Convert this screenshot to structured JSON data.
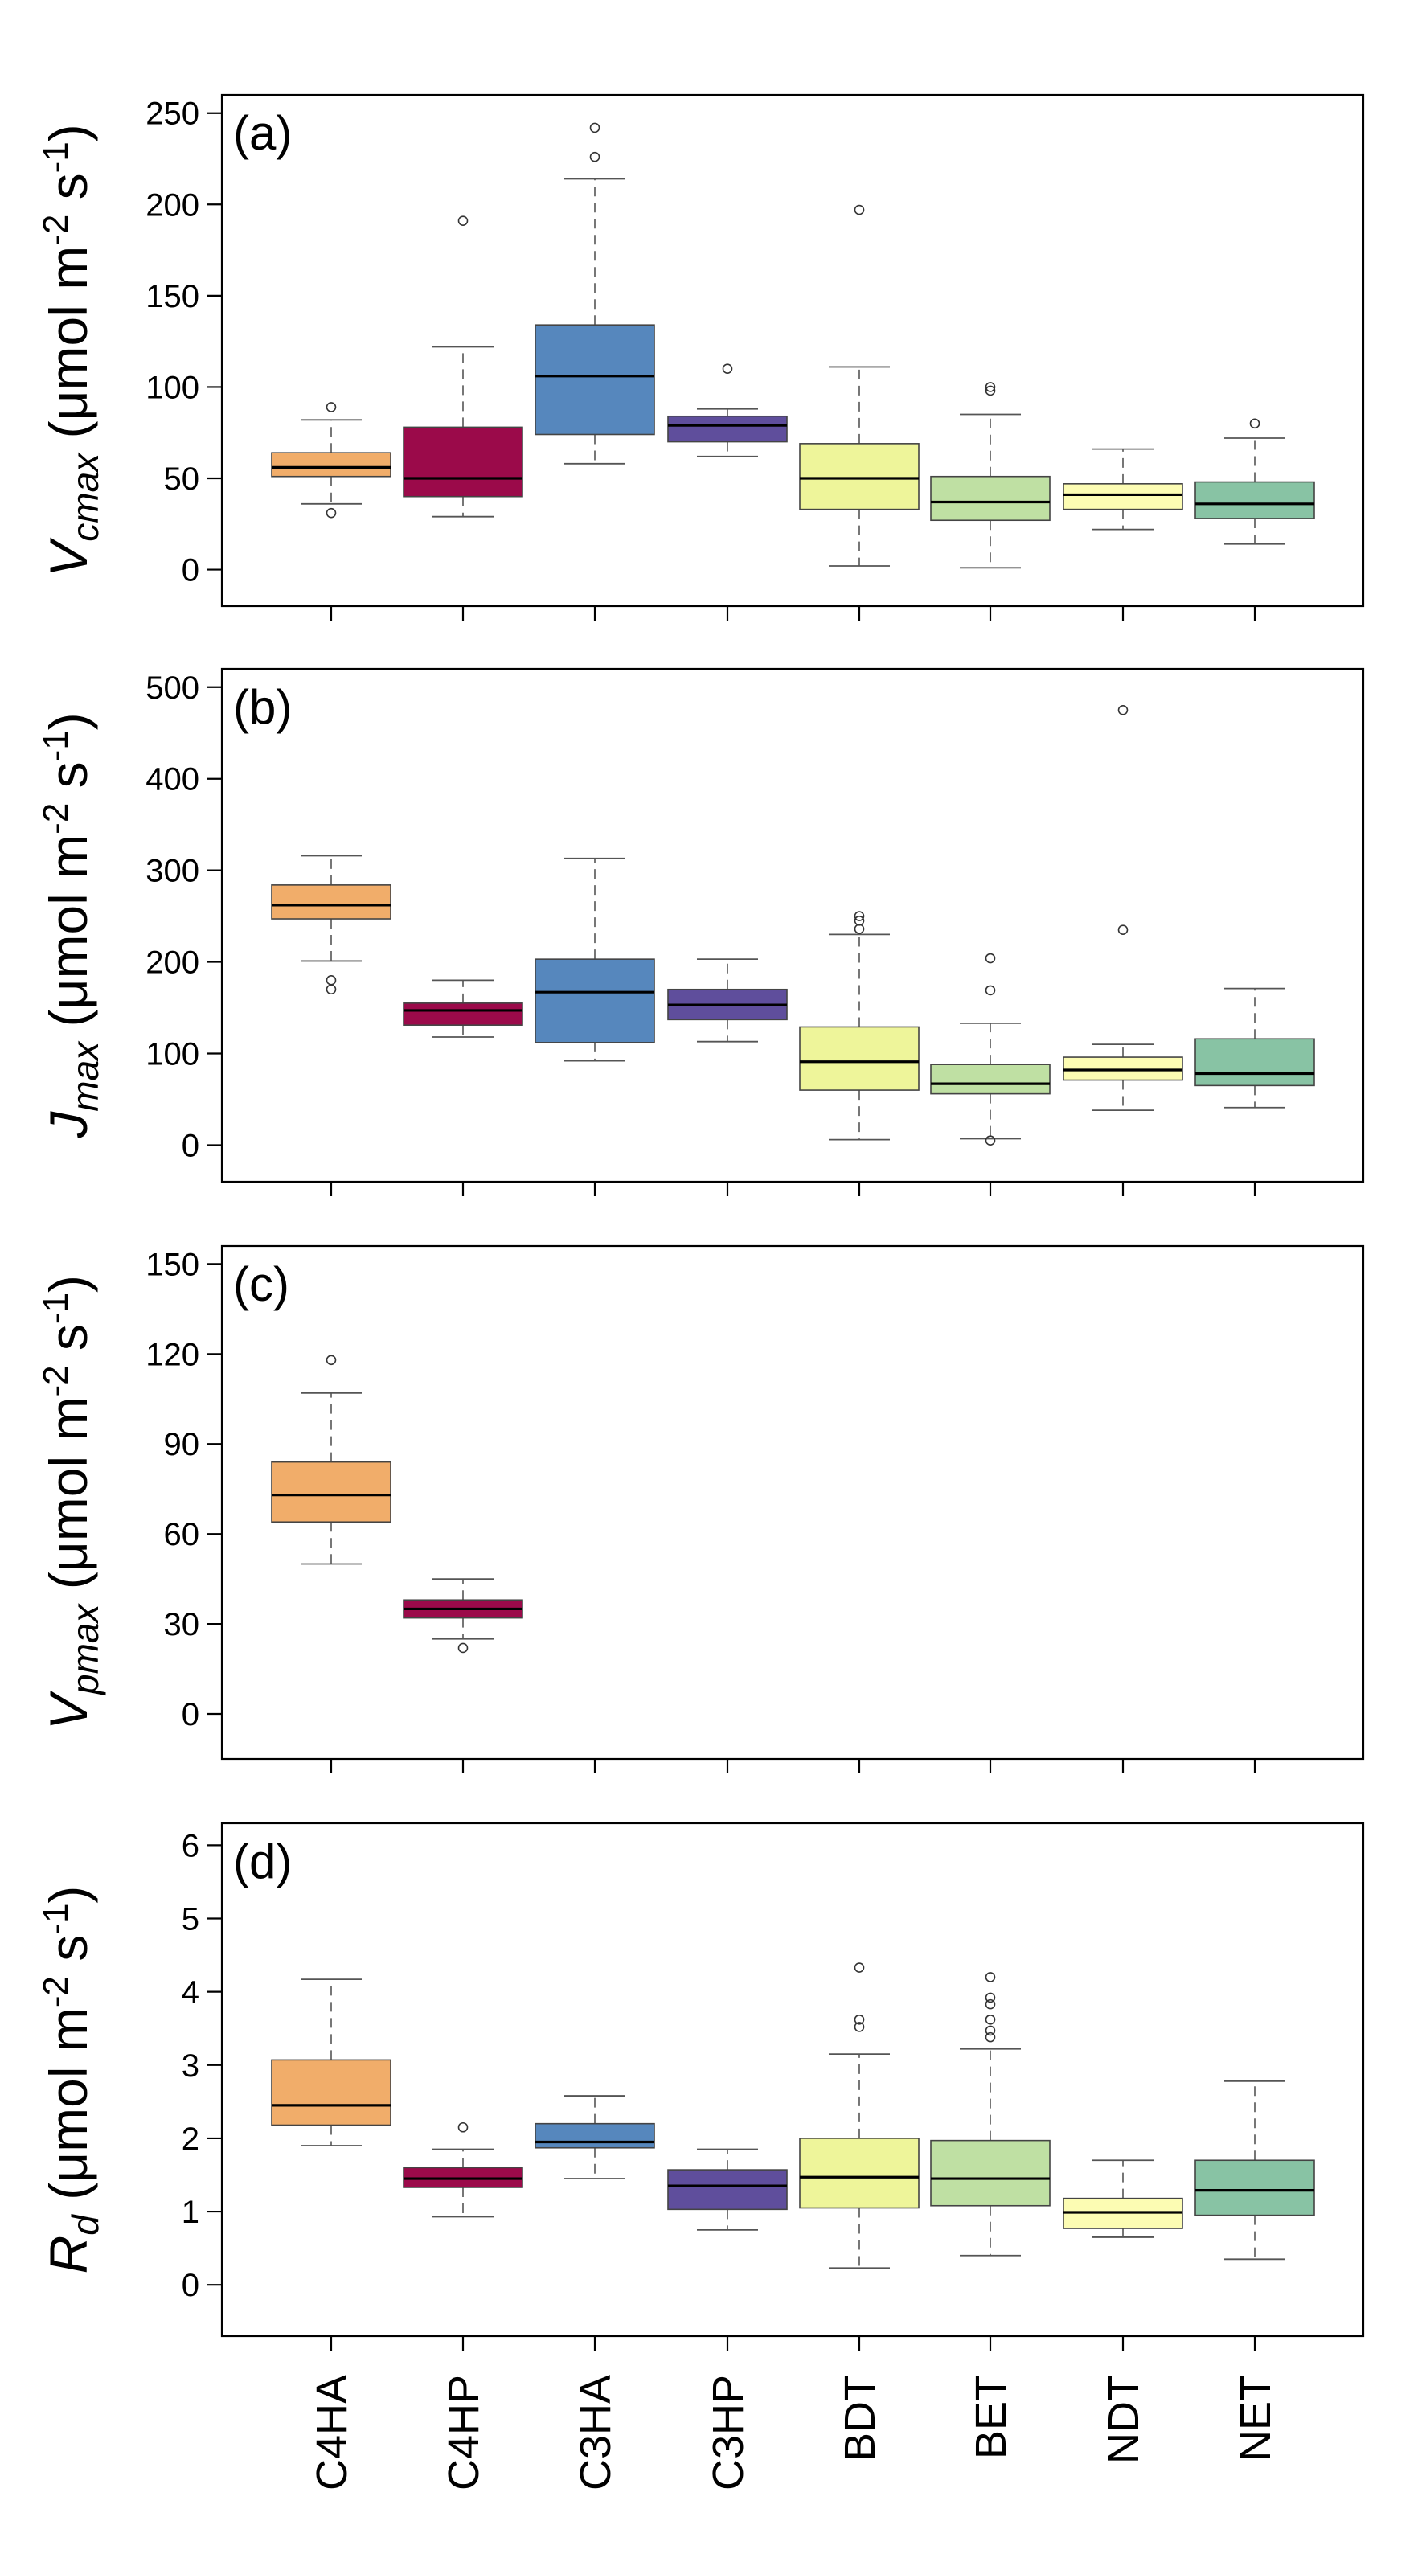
{
  "categories": [
    "C4HA",
    "C4HP",
    "C3HA",
    "C3HP",
    "BDT",
    "BET",
    "NDT",
    "NET"
  ],
  "colors": {
    "C4HA": "#f1ad6a",
    "C4HP": "#9b0a4a",
    "C3HA": "#5687bd",
    "C3HP": "#5f4e9c",
    "BDT": "#eef59a",
    "BET": "#bfe0a3",
    "NDT": "#fcfcb3",
    "NET": "#88c3a4"
  },
  "chart_data": [
    {
      "type": "box",
      "panel_label": "(a)",
      "ylabel": {
        "main": "V",
        "sub": "cmax",
        "unit_pre": " (μmol m",
        "exp1": "-2",
        "mid": " s",
        "exp2": "-1",
        "close": ")"
      },
      "ylim": [
        -20,
        260
      ],
      "yticks": [
        0,
        50,
        100,
        150,
        200,
        250
      ],
      "boxes": [
        {
          "cat": "C4HA",
          "low": 36,
          "q1": 51,
          "median": 56,
          "q3": 64,
          "high": 82,
          "outliers": [
            89,
            31
          ]
        },
        {
          "cat": "C4HP",
          "low": 29,
          "q1": 40,
          "median": 50,
          "q3": 78,
          "high": 122,
          "outliers": [
            191
          ]
        },
        {
          "cat": "C3HA",
          "low": 58,
          "q1": 74,
          "median": 106,
          "q3": 134,
          "high": 214,
          "outliers": [
            226,
            242
          ]
        },
        {
          "cat": "C3HP",
          "low": 62,
          "q1": 70,
          "median": 79,
          "q3": 84,
          "high": 88,
          "outliers": [
            110
          ]
        },
        {
          "cat": "BDT",
          "low": 2,
          "q1": 33,
          "median": 50,
          "q3": 69,
          "high": 111,
          "outliers": [
            197
          ]
        },
        {
          "cat": "BET",
          "low": 1,
          "q1": 27,
          "median": 37,
          "q3": 51,
          "high": 85,
          "outliers": [
            98,
            100
          ]
        },
        {
          "cat": "NDT",
          "low": 22,
          "q1": 33,
          "median": 41,
          "q3": 47,
          "high": 66,
          "outliers": []
        },
        {
          "cat": "NET",
          "low": 14,
          "q1": 28,
          "median": 36,
          "q3": 48,
          "high": 72,
          "outliers": [
            80
          ]
        }
      ]
    },
    {
      "type": "box",
      "panel_label": "(b)",
      "ylabel": {
        "main": "J",
        "sub": "max",
        "unit_pre": " (μmol m",
        "exp1": "-2",
        "mid": " s",
        "exp2": "-1",
        "close": ")"
      },
      "ylim": [
        -40,
        520
      ],
      "yticks": [
        0,
        100,
        200,
        300,
        400,
        500
      ],
      "boxes": [
        {
          "cat": "C4HA",
          "low": 201,
          "q1": 247,
          "median": 262,
          "q3": 284,
          "high": 316,
          "outliers": [
            180,
            170
          ]
        },
        {
          "cat": "C4HP",
          "low": 118,
          "q1": 131,
          "median": 147,
          "q3": 155,
          "high": 180,
          "outliers": []
        },
        {
          "cat": "C3HA",
          "low": 92,
          "q1": 112,
          "median": 167,
          "q3": 203,
          "high": 313,
          "outliers": []
        },
        {
          "cat": "C3HP",
          "low": 113,
          "q1": 137,
          "median": 153,
          "q3": 170,
          "high": 203,
          "outliers": []
        },
        {
          "cat": "BDT",
          "low": 6,
          "q1": 60,
          "median": 91,
          "q3": 129,
          "high": 230,
          "outliers": [
            236,
            245,
            250
          ]
        },
        {
          "cat": "BET",
          "low": 7,
          "q1": 56,
          "median": 67,
          "q3": 88,
          "high": 133,
          "outliers": [
            169,
            204,
            5
          ]
        },
        {
          "cat": "NDT",
          "low": 38,
          "q1": 71,
          "median": 82,
          "q3": 96,
          "high": 110,
          "outliers": [
            235,
            475
          ]
        },
        {
          "cat": "NET",
          "low": 41,
          "q1": 65,
          "median": 78,
          "q3": 116,
          "high": 171,
          "outliers": []
        }
      ]
    },
    {
      "type": "box",
      "panel_label": "(c)",
      "ylabel": {
        "main": "V",
        "sub": "pmax",
        "unit_pre": " (μmol m",
        "exp1": "-2",
        "mid": " s",
        "exp2": "-1",
        "close": ")"
      },
      "ylim": [
        -15,
        156
      ],
      "yticks": [
        0,
        30,
        60,
        90,
        120,
        150
      ],
      "boxes": [
        {
          "cat": "C4HA",
          "low": 50,
          "q1": 64,
          "median": 73,
          "q3": 84,
          "high": 107,
          "outliers": [
            118
          ]
        },
        {
          "cat": "C4HP",
          "low": 25,
          "q1": 32,
          "median": 35,
          "q3": 38,
          "high": 45,
          "outliers": [
            22
          ]
        }
      ]
    },
    {
      "type": "box",
      "panel_label": "(d)",
      "ylabel": {
        "main": "R",
        "sub": "d",
        "unit_pre": " (μmol m",
        "exp1": "-2",
        "mid": " s",
        "exp2": "-1",
        "close": ")"
      },
      "ylim": [
        -0.7,
        6.3
      ],
      "yticks": [
        0,
        1,
        2,
        3,
        4,
        5,
        6
      ],
      "boxes": [
        {
          "cat": "C4HA",
          "low": 1.9,
          "q1": 2.18,
          "median": 2.45,
          "q3": 3.07,
          "high": 4.17,
          "outliers": []
        },
        {
          "cat": "C4HP",
          "low": 0.93,
          "q1": 1.33,
          "median": 1.45,
          "q3": 1.6,
          "high": 1.85,
          "outliers": [
            2.15
          ]
        },
        {
          "cat": "C3HA",
          "low": 1.45,
          "q1": 1.87,
          "median": 1.95,
          "q3": 2.2,
          "high": 2.58,
          "outliers": []
        },
        {
          "cat": "C3HP",
          "low": 0.75,
          "q1": 1.03,
          "median": 1.35,
          "q3": 1.57,
          "high": 1.85,
          "outliers": []
        },
        {
          "cat": "BDT",
          "low": 0.23,
          "q1": 1.05,
          "median": 1.47,
          "q3": 2.0,
          "high": 3.15,
          "outliers": [
            3.52,
            3.62,
            4.33
          ]
        },
        {
          "cat": "BET",
          "low": 0.4,
          "q1": 1.08,
          "median": 1.45,
          "q3": 1.97,
          "high": 3.22,
          "outliers": [
            3.38,
            3.47,
            3.62,
            3.83,
            3.92,
            4.2
          ]
        },
        {
          "cat": "NDT",
          "low": 0.65,
          "q1": 0.77,
          "median": 0.99,
          "q3": 1.18,
          "high": 1.7,
          "outliers": []
        },
        {
          "cat": "NET",
          "low": 0.35,
          "q1": 0.95,
          "median": 1.29,
          "q3": 1.7,
          "high": 2.78,
          "outliers": []
        }
      ]
    }
  ]
}
